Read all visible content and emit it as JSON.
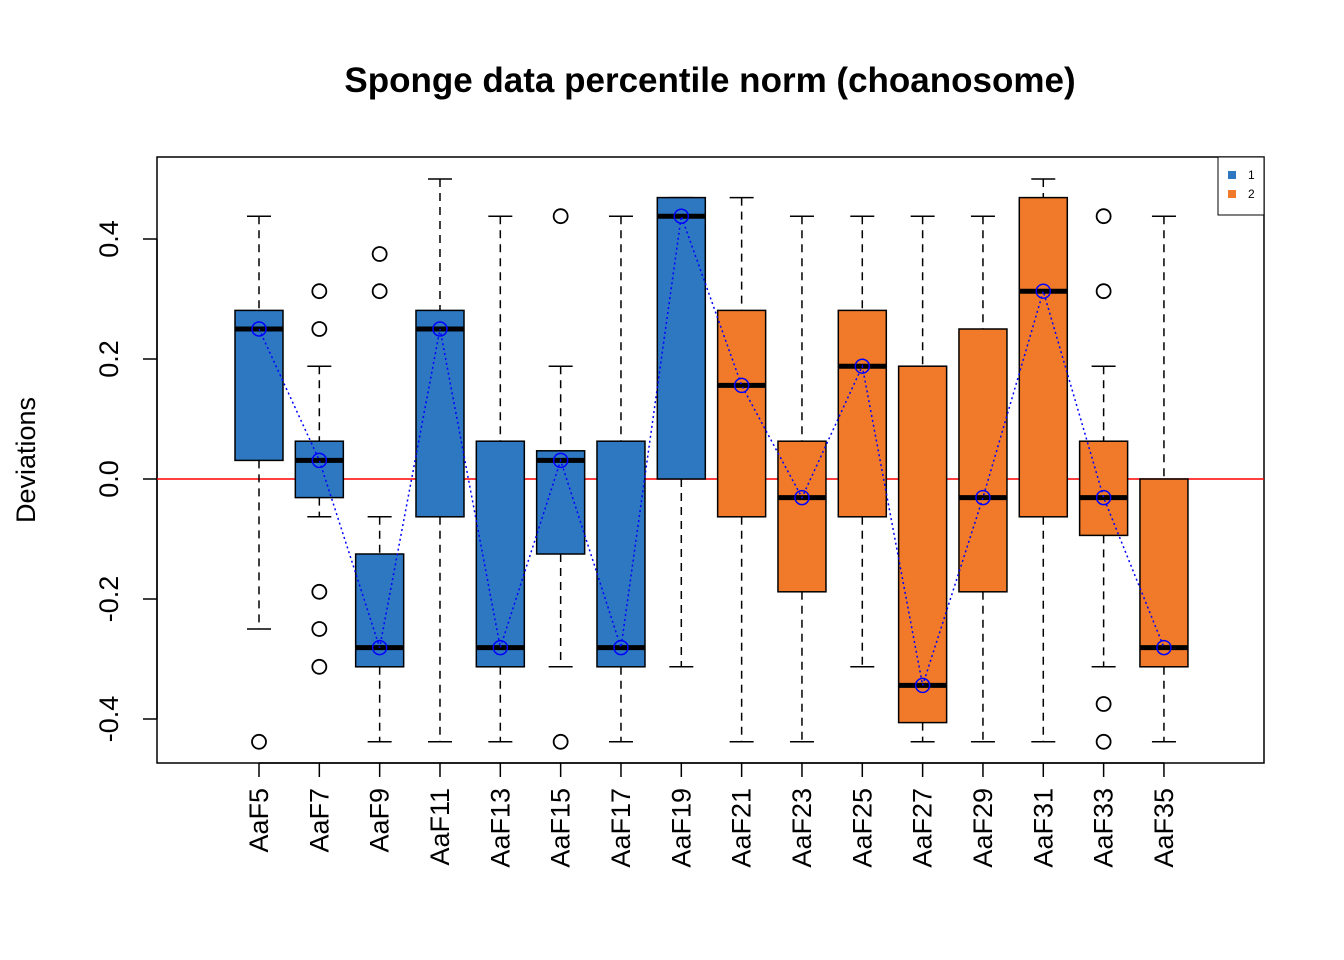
{
  "chart_data": {
    "type": "box",
    "title": "Sponge data percentile norm (choanosome)",
    "xlabel": "",
    "ylabel": "Deviations",
    "ylim": [
      -0.47,
      0.54
    ],
    "yticks": [
      -0.4,
      -0.2,
      0.0,
      0.2,
      0.4
    ],
    "ytick_labels": [
      "-0.4",
      "-0.2",
      "0.0",
      "0.2",
      "0.4"
    ],
    "reference_line": {
      "y": 0.0,
      "color": "#ff0000"
    },
    "mean_line": {
      "color": "#0000ff",
      "style": "dotted"
    },
    "categories": [
      "AaF5",
      "AaF7",
      "AaF9",
      "AaF11",
      "AaF13",
      "AaF15",
      "AaF17",
      "AaF19",
      "AaF21",
      "AaF23",
      "AaF25",
      "AaF27",
      "AaF29",
      "AaF31",
      "AaF33",
      "AaF35"
    ],
    "groups": [
      1,
      1,
      1,
      1,
      1,
      1,
      1,
      1,
      2,
      2,
      2,
      2,
      2,
      2,
      2,
      2
    ],
    "boxes": [
      {
        "label": "AaF5",
        "whisker_low": -0.25,
        "q1": 0.031,
        "median": 0.25,
        "q3": 0.281,
        "whisker_high": 0.438,
        "outliers": [
          -0.438
        ],
        "mean": 0.25
      },
      {
        "label": "AaF7",
        "whisker_low": -0.063,
        "q1": -0.031,
        "median": 0.031,
        "q3": 0.063,
        "whisker_high": 0.188,
        "outliers": [
          0.313,
          0.25,
          -0.188,
          -0.25,
          -0.313
        ],
        "mean": 0.031
      },
      {
        "label": "AaF9",
        "whisker_low": -0.438,
        "q1": -0.313,
        "median": -0.281,
        "q3": -0.125,
        "whisker_high": -0.063,
        "outliers": [
          0.375,
          0.313
        ],
        "mean": -0.281
      },
      {
        "label": "AaF11",
        "whisker_low": -0.438,
        "q1": -0.063,
        "median": 0.25,
        "q3": 0.281,
        "whisker_high": 0.5,
        "outliers": [],
        "mean": 0.25
      },
      {
        "label": "AaF13",
        "whisker_low": -0.438,
        "q1": -0.313,
        "median": -0.281,
        "q3": 0.063,
        "whisker_high": 0.438,
        "outliers": [],
        "mean": -0.281
      },
      {
        "label": "AaF15",
        "whisker_low": -0.313,
        "q1": -0.125,
        "median": 0.031,
        "q3": 0.047,
        "whisker_high": 0.188,
        "outliers": [
          0.438,
          -0.438
        ],
        "mean": 0.031
      },
      {
        "label": "AaF17",
        "whisker_low": -0.438,
        "q1": -0.313,
        "median": -0.281,
        "q3": 0.063,
        "whisker_high": 0.438,
        "outliers": [],
        "mean": -0.281
      },
      {
        "label": "AaF19",
        "whisker_low": -0.313,
        "q1": 0.0,
        "median": 0.438,
        "q3": 0.469,
        "whisker_high": 0.469,
        "outliers": [],
        "mean": 0.438
      },
      {
        "label": "AaF21",
        "whisker_low": -0.438,
        "q1": -0.063,
        "median": 0.156,
        "q3": 0.281,
        "whisker_high": 0.469,
        "outliers": [],
        "mean": 0.156
      },
      {
        "label": "AaF23",
        "whisker_low": -0.438,
        "q1": -0.188,
        "median": -0.031,
        "q3": 0.063,
        "whisker_high": 0.438,
        "outliers": [],
        "mean": -0.031
      },
      {
        "label": "AaF25",
        "whisker_low": -0.313,
        "q1": -0.063,
        "median": 0.188,
        "q3": 0.281,
        "whisker_high": 0.438,
        "outliers": [],
        "mean": 0.188
      },
      {
        "label": "AaF27",
        "whisker_low": -0.438,
        "q1": -0.406,
        "median": -0.344,
        "q3": 0.188,
        "whisker_high": 0.438,
        "outliers": [],
        "mean": -0.344
      },
      {
        "label": "AaF29",
        "whisker_low": -0.438,
        "q1": -0.188,
        "median": -0.031,
        "q3": 0.25,
        "whisker_high": 0.438,
        "outliers": [],
        "mean": -0.031
      },
      {
        "label": "AaF31",
        "whisker_low": -0.438,
        "q1": -0.063,
        "median": 0.313,
        "q3": 0.469,
        "whisker_high": 0.5,
        "outliers": [],
        "mean": 0.313
      },
      {
        "label": "AaF33",
        "whisker_low": -0.313,
        "q1": -0.094,
        "median": -0.031,
        "q3": 0.063,
        "whisker_high": 0.188,
        "outliers": [
          0.438,
          0.313,
          -0.375,
          -0.438
        ],
        "mean": -0.031
      },
      {
        "label": "AaF35",
        "whisker_low": -0.438,
        "q1": -0.313,
        "median": -0.281,
        "q3": 0.0,
        "whisker_high": 0.438,
        "outliers": [],
        "mean": -0.281
      }
    ],
    "legend": {
      "position": "top-right",
      "entries": [
        {
          "label": "1",
          "color": "#2e78c2"
        },
        {
          "label": "2",
          "color": "#f07a2a"
        }
      ]
    }
  }
}
